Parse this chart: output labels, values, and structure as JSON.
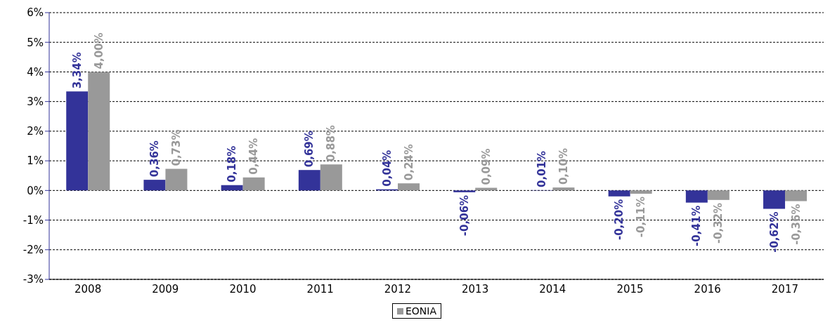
{
  "chart_data": {
    "type": "bar",
    "categories": [
      "2008",
      "2009",
      "2010",
      "2011",
      "2012",
      "2013",
      "2014",
      "2015",
      "2016",
      "2017"
    ],
    "series": [
      {
        "color": "#333399",
        "values": [
          3.34,
          0.36,
          0.18,
          0.69,
          0.04,
          -0.06,
          0.01,
          -0.2,
          -0.41,
          -0.62
        ],
        "value_labels": [
          "3,34%",
          "0,36%",
          "0,18%",
          "0,69%",
          "0,04%",
          "-0,06%",
          "0,01%",
          "-0,20%",
          "-0,41%",
          "-0,62%"
        ]
      },
      {
        "name": "EONIA",
        "color": "#999999",
        "values": [
          4.0,
          0.73,
          0.44,
          0.88,
          0.24,
          0.09,
          0.1,
          -0.11,
          -0.32,
          -0.36
        ],
        "value_labels": [
          "4,00%",
          "0,73%",
          "0,44%",
          "0,88%",
          "0,24%",
          "0,09%",
          "0,10%",
          "-0,11%",
          "-0,32%",
          "-0,36%"
        ]
      }
    ],
    "ylim": [
      -3,
      6
    ],
    "yticks": [
      {
        "value": -3,
        "label": "-3%"
      },
      {
        "value": -2,
        "label": "-2%"
      },
      {
        "value": -1,
        "label": "-1%"
      },
      {
        "value": 0,
        "label": "0%"
      },
      {
        "value": 1,
        "label": "1%"
      },
      {
        "value": 2,
        "label": "2%"
      },
      {
        "value": 3,
        "label": "3%"
      },
      {
        "value": 4,
        "label": "4%"
      },
      {
        "value": 5,
        "label": "5%"
      },
      {
        "value": 6,
        "label": "6%"
      }
    ],
    "grid": "y",
    "legend": "bottom"
  }
}
